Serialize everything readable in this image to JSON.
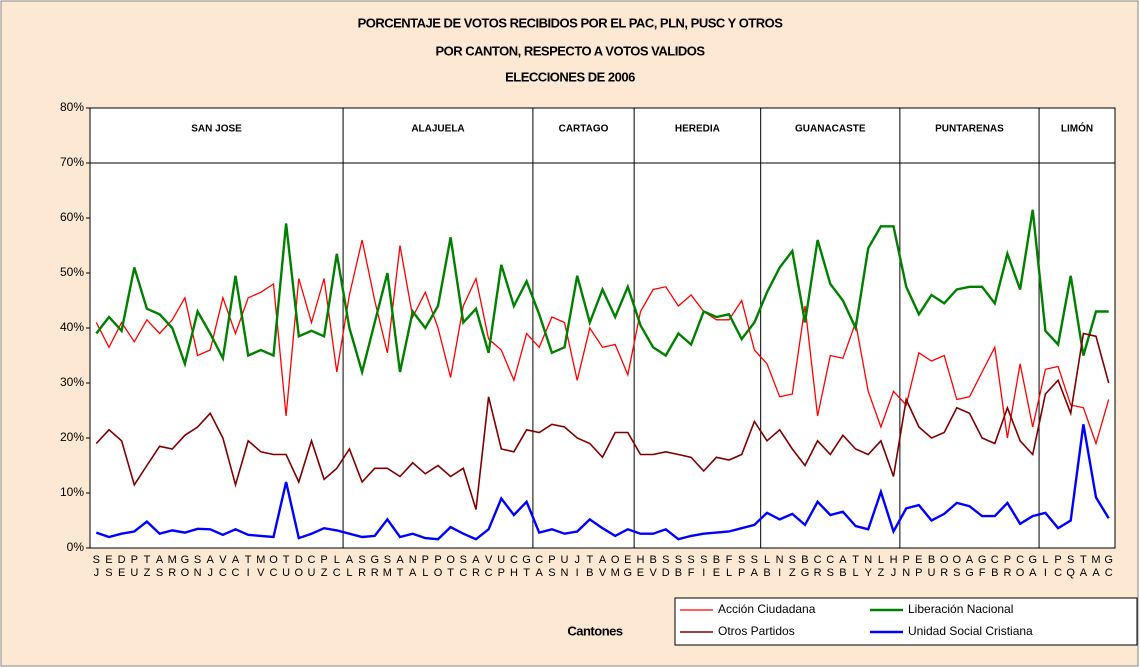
{
  "chart_data": {
    "type": "line",
    "title": [
      "PORCENTAJE DE VOTOS RECIBIDOS POR EL PAC, PLN, PUSC Y OTROS",
      "POR CANTON,  RESPECTO A VOTOS VALIDOS",
      "ELECCIONES DE 2006"
    ],
    "x_label": "Cantones",
    "groups": [
      {
        "name": "SAN JOSE",
        "size": 20
      },
      {
        "name": "ALAJUELA",
        "size": 15
      },
      {
        "name": "CARTAGO",
        "size": 8
      },
      {
        "name": "HEREDIA",
        "size": 10
      },
      {
        "name": "GUANACASTE",
        "size": 11
      },
      {
        "name": "PUNTARENAS",
        "size": 11
      },
      {
        "name": "LIMÓN",
        "size": 6
      }
    ],
    "categories": [
      "SJ",
      "ES",
      "DE",
      "PU",
      "TZ",
      "AS",
      "MR",
      "GO",
      "SN",
      "AJ",
      "VC",
      "AC",
      "TI",
      "MV",
      "OC",
      "TU",
      "DO",
      "CU",
      "PZ",
      "LC",
      "AL",
      "SR",
      "GR",
      "SM",
      "AT",
      "NA",
      "PL",
      "PO",
      "OT",
      "SC",
      "AR",
      "VC",
      "UP",
      "CH",
      "GT",
      "CA",
      "PS",
      "UN",
      "JI",
      "TB",
      "AV",
      "OM",
      "EG",
      "HE",
      "BV",
      "SD",
      "SB",
      "SF",
      "SI",
      "BE",
      "FL",
      "SP",
      "SA",
      "LB",
      "NI",
      "SZ",
      "BG",
      "CR",
      "CS",
      "AB",
      "TL",
      "NY",
      "LZ",
      "HJ",
      "PN",
      "EP",
      "BU",
      "OR",
      "OS",
      "AG",
      "GF",
      "CB",
      "PR",
      "CO",
      "GA",
      "LI",
      "PC",
      "SQ",
      "TA",
      "MA",
      "GC"
    ],
    "ylim": [
      0,
      80
    ],
    "yticks": [
      {
        "value": 0,
        "label": "0%"
      },
      {
        "value": 10,
        "label": "10%"
      },
      {
        "value": 20,
        "label": "20%"
      },
      {
        "value": 30,
        "label": "30%"
      },
      {
        "value": 40,
        "label": "40%"
      },
      {
        "value": 50,
        "label": "50%"
      },
      {
        "value": 60,
        "label": "60%"
      },
      {
        "value": 70,
        "label": "70%"
      },
      {
        "value": 80,
        "label": "80%"
      }
    ],
    "series": [
      {
        "name": "Acción Ciudadana",
        "color": "#ff0000",
        "values": [
          41,
          36.5,
          41,
          37.5,
          41.5,
          39,
          41.5,
          45.5,
          35,
          36,
          45.5,
          39,
          45.5,
          46.5,
          48,
          24,
          49,
          41,
          49,
          32,
          46,
          56,
          45,
          35.5,
          55,
          42,
          46.5,
          40,
          31,
          44,
          49,
          38,
          36,
          30.5,
          39,
          36.5,
          42,
          41,
          30.5,
          40,
          36.5,
          37,
          31.5,
          43,
          47,
          47.5,
          44,
          46,
          43,
          41.5,
          41.5,
          45,
          36,
          33.5,
          27.5,
          28,
          44,
          24,
          35,
          34.5,
          41,
          28.5,
          22,
          28.5,
          26,
          35.5,
          34,
          35,
          27,
          27.5,
          32,
          36.5,
          20,
          33.5,
          22,
          32.5,
          33,
          26,
          25.5,
          19,
          27
        ]
      },
      {
        "name": "Liberación Nacional",
        "color": "#008000",
        "values": [
          39,
          42,
          39.5,
          51,
          43.5,
          42.5,
          40,
          33.5,
          43,
          39,
          34.5,
          49.5,
          35,
          36,
          35,
          59,
          38.5,
          39.5,
          38.5,
          53.5,
          40,
          32,
          41,
          50,
          32,
          43,
          40,
          44,
          56.5,
          41,
          43.5,
          35.5,
          51.5,
          44,
          48.5,
          42.5,
          35.5,
          36.5,
          49.5,
          41,
          47,
          42,
          47.5,
          40.5,
          36.5,
          35,
          39,
          37,
          43,
          42,
          42.5,
          38,
          41,
          46.5,
          51,
          54,
          41,
          56,
          48,
          45,
          40,
          54.5,
          58.5,
          58.5,
          47.5,
          42.5,
          46,
          44.5,
          47,
          47.5,
          47.5,
          44.5,
          53.5,
          47,
          61.5,
          39.5,
          37,
          49.5,
          35,
          43,
          43
        ]
      },
      {
        "name": "Otros Partidos",
        "color": "#800000",
        "values": [
          19,
          21.5,
          19.5,
          11.5,
          15,
          18.5,
          18,
          20.5,
          22,
          24.5,
          20,
          11.5,
          19.5,
          17.5,
          17,
          17,
          12,
          19.5,
          12.5,
          14.5,
          18,
          12,
          14.5,
          14.5,
          13,
          15.5,
          13.5,
          15,
          13,
          14.5,
          7,
          27.5,
          18,
          17.5,
          21.5,
          21,
          22.5,
          22,
          20,
          19,
          16.5,
          21,
          21,
          17,
          17,
          17.5,
          17,
          16.5,
          14,
          16.5,
          16,
          17,
          23,
          19.5,
          21.5,
          18,
          15,
          19.5,
          17,
          20.5,
          18,
          17,
          19.5,
          13,
          27,
          22,
          20,
          21,
          25.5,
          24.5,
          20,
          19,
          25.5,
          19.5,
          17,
          28,
          30.5,
          24.5,
          39,
          38.5,
          30
        ]
      },
      {
        "name": "Unidad Social Cristiana",
        "color": "#0000ff",
        "values": [
          2.8,
          2,
          2.6,
          3,
          4.8,
          2.6,
          3.2,
          2.8,
          3.5,
          3.4,
          2.4,
          3.4,
          2.4,
          2.2,
          2,
          12,
          1.8,
          2.6,
          3.6,
          3.2,
          2.6,
          2,
          2.2,
          5.2,
          2,
          2.6,
          1.8,
          1.6,
          3.8,
          2.6,
          1.6,
          3.4,
          9,
          6,
          8.4,
          2.8,
          3.4,
          2.6,
          3,
          5.2,
          3.6,
          2.2,
          3.4,
          2.6,
          2.6,
          3.4,
          1.6,
          2.2,
          2.6,
          2.8,
          3,
          3.6,
          4.2,
          6.4,
          5.2,
          6.2,
          4.2,
          8.4,
          6,
          6.6,
          4,
          3.4,
          10.2,
          3,
          7.2,
          7.8,
          5,
          6.2,
          8.2,
          7.6,
          5.8,
          5.8,
          8.2,
          4.4,
          5.8,
          6.4,
          3.6,
          5,
          22.5,
          9.2,
          5.4
        ]
      }
    ]
  }
}
